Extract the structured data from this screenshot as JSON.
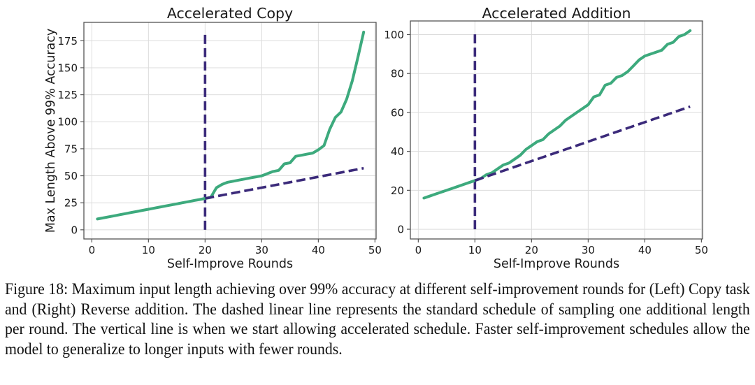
{
  "colors": {
    "accelerated": "#3daa7d",
    "standard": "#3b2a7a",
    "grid": "#dcdcdc",
    "axis": "#555555"
  },
  "chart_data": [
    {
      "type": "line",
      "title": "Accelerated Copy",
      "xlabel": "Self-Improve Rounds",
      "ylabel": "Max Length Above 99% Accuracy",
      "xlim": [
        -1.4,
        50.2
      ],
      "ylim": [
        -8.5,
        192
      ],
      "xticks": [
        0,
        10,
        20,
        30,
        40,
        50
      ],
      "yticks": [
        0,
        25,
        50,
        75,
        100,
        125,
        150,
        175
      ],
      "grid": true,
      "vline": {
        "x": 20,
        "y_from": 0,
        "y_to": 183,
        "style": "dashed"
      },
      "series": [
        {
          "name": "Accelerated schedule",
          "style": "solid",
          "x": [
            1,
            2,
            3,
            4,
            5,
            6,
            7,
            8,
            9,
            10,
            11,
            12,
            13,
            14,
            15,
            16,
            17,
            18,
            19,
            20,
            21,
            22,
            23,
            24,
            25,
            26,
            27,
            28,
            29,
            30,
            31,
            32,
            33,
            34,
            35,
            36,
            37,
            38,
            39,
            40,
            41,
            42,
            43,
            44,
            45,
            46,
            47,
            48
          ],
          "y": [
            10,
            11,
            12,
            13,
            14,
            15,
            16,
            17,
            18,
            19,
            20,
            21,
            22,
            23,
            24,
            25,
            26,
            27,
            28,
            29,
            30,
            39,
            42,
            44,
            45,
            46,
            47,
            48,
            49,
            50,
            52,
            54,
            55,
            61,
            62,
            68,
            69,
            70,
            71,
            74,
            78,
            93,
            104,
            109,
            121,
            138,
            160,
            183
          ]
        },
        {
          "name": "Standard schedule",
          "style": "dashed",
          "x": [
            20,
            48
          ],
          "y": [
            29,
            57
          ]
        }
      ]
    },
    {
      "type": "line",
      "title": "Accelerated Addition",
      "xlabel": "Self-Improve Rounds",
      "ylabel": "",
      "xlim": [
        -1.4,
        50.2
      ],
      "ylim": [
        -5,
        107
      ],
      "xticks": [
        0,
        10,
        20,
        30,
        40,
        50
      ],
      "yticks": [
        0,
        20,
        40,
        60,
        80,
        100
      ],
      "grid": true,
      "vline": {
        "x": 10,
        "y_from": 0,
        "y_to": 102,
        "style": "dashed"
      },
      "series": [
        {
          "name": "Accelerated schedule",
          "style": "solid",
          "x": [
            1,
            2,
            3,
            4,
            5,
            6,
            7,
            8,
            9,
            10,
            11,
            12,
            13,
            14,
            15,
            16,
            17,
            18,
            19,
            20,
            21,
            22,
            23,
            24,
            25,
            26,
            27,
            28,
            29,
            30,
            31,
            32,
            33,
            34,
            35,
            36,
            37,
            38,
            39,
            40,
            41,
            42,
            43,
            44,
            45,
            46,
            47,
            48
          ],
          "y": [
            16,
            17,
            18,
            19,
            20,
            21,
            22,
            23,
            24,
            25,
            26,
            28,
            29,
            31,
            33,
            34,
            36,
            38,
            41,
            43,
            45,
            46,
            49,
            51,
            53,
            56,
            58,
            60,
            62,
            64,
            68,
            69,
            74,
            75,
            78,
            79,
            81,
            84,
            87,
            89,
            90,
            91,
            92,
            95,
            96,
            99,
            100,
            102
          ]
        },
        {
          "name": "Standard schedule",
          "style": "dashed",
          "x": [
            10,
            48
          ],
          "y": [
            25,
            63
          ]
        }
      ]
    }
  ],
  "caption": "Figure 18: Maximum input length achieving over 99% accuracy at different self-improvement rounds for (Left) Copy task and (Right) Reverse addition. The dashed linear line represents the standard schedule of sampling one additional length per round. The vertical line is when we start allowing accelerated schedule. Faster self-improvement schedules allow the model to generalize to longer inputs with fewer rounds."
}
